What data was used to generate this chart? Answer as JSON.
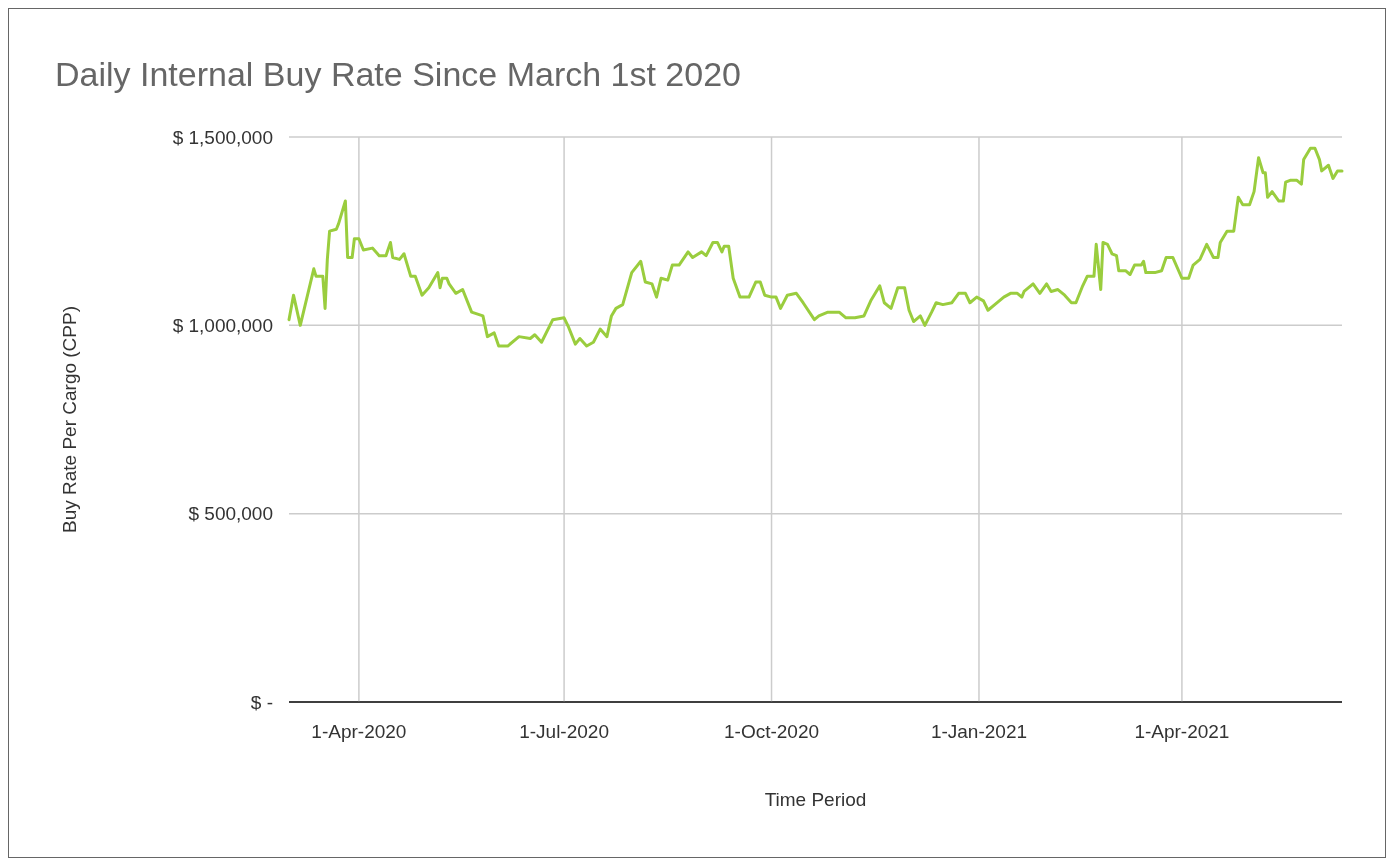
{
  "chart_data": {
    "type": "line",
    "title": "Daily Internal Buy Rate Since March 1st 2020",
    "xlabel": "Time Period",
    "ylabel": "Buy Rate Per Cargo (CPP)",
    "x": [
      "2020-03-01",
      "2020-03-03",
      "2020-03-06",
      "2020-03-09",
      "2020-03-12",
      "2020-03-13",
      "2020-03-16",
      "2020-03-17",
      "2020-03-18",
      "2020-03-19",
      "2020-03-22",
      "2020-03-23",
      "2020-03-26",
      "2020-03-27",
      "2020-03-29",
      "2020-03-30",
      "2020-04-01",
      "2020-04-03",
      "2020-04-07",
      "2020-04-10",
      "2020-04-13",
      "2020-04-15",
      "2020-04-16",
      "2020-04-19",
      "2020-04-21",
      "2020-04-24",
      "2020-04-26",
      "2020-04-29",
      "2020-05-02",
      "2020-05-06",
      "2020-05-07",
      "2020-05-08",
      "2020-05-10",
      "2020-05-11",
      "2020-05-14",
      "2020-05-17",
      "2020-05-21",
      "2020-05-26",
      "2020-05-28",
      "2020-05-31",
      "2020-06-02",
      "2020-06-06",
      "2020-06-11",
      "2020-06-16",
      "2020-06-18",
      "2020-06-21",
      "2020-06-26",
      "2020-07-01",
      "2020-07-03",
      "2020-07-06",
      "2020-07-08",
      "2020-07-11",
      "2020-07-14",
      "2020-07-17",
      "2020-07-20",
      "2020-07-22",
      "2020-07-24",
      "2020-07-27",
      "2020-07-31",
      "2020-08-04",
      "2020-08-06",
      "2020-08-09",
      "2020-08-11",
      "2020-08-13",
      "2020-08-16",
      "2020-08-18",
      "2020-08-21",
      "2020-08-25",
      "2020-08-27",
      "2020-08-31",
      "2020-09-02",
      "2020-09-05",
      "2020-09-07",
      "2020-09-09",
      "2020-09-10",
      "2020-09-12",
      "2020-09-14",
      "2020-09-17",
      "2020-09-21",
      "2020-09-24",
      "2020-09-26",
      "2020-09-28",
      "2020-10-01",
      "2020-10-03",
      "2020-10-05",
      "2020-10-08",
      "2020-10-12",
      "2020-10-15",
      "2020-10-20",
      "2020-10-22",
      "2020-10-26",
      "2020-10-31",
      "2020-11-03",
      "2020-11-07",
      "2020-11-11",
      "2020-11-14",
      "2020-11-18",
      "2020-11-20",
      "2020-11-23",
      "2020-11-26",
      "2020-11-29",
      "2020-12-01",
      "2020-12-03",
      "2020-12-06",
      "2020-12-08",
      "2020-12-11",
      "2020-12-13",
      "2020-12-16",
      "2020-12-20",
      "2020-12-23",
      "2020-12-26",
      "2020-12-28",
      "2020-12-31",
      "2021-01-03",
      "2021-01-05",
      "2021-01-08",
      "2021-01-12",
      "2021-01-15",
      "2021-01-18",
      "2021-01-20",
      "2021-01-21",
      "2021-01-25",
      "2021-01-28",
      "2021-01-31",
      "2021-02-02",
      "2021-02-05",
      "2021-02-08",
      "2021-02-11",
      "2021-02-13",
      "2021-02-16",
      "2021-02-18",
      "2021-02-21",
      "2021-02-22",
      "2021-02-24",
      "2021-02-25",
      "2021-02-27",
      "2021-03-01",
      "2021-03-03",
      "2021-03-04",
      "2021-03-07",
      "2021-03-09",
      "2021-03-11",
      "2021-03-14",
      "2021-03-15",
      "2021-03-16",
      "2021-03-20",
      "2021-03-23",
      "2021-03-25",
      "2021-03-28",
      "2021-04-01",
      "2021-04-04",
      "2021-04-06",
      "2021-04-09",
      "2021-04-12",
      "2021-04-15",
      "2021-04-17",
      "2021-04-18",
      "2021-04-21",
      "2021-04-24",
      "2021-04-26",
      "2021-04-28",
      "2021-05-01",
      "2021-05-03",
      "2021-05-05",
      "2021-05-07",
      "2021-05-08",
      "2021-05-09",
      "2021-05-11",
      "2021-05-14",
      "2021-05-16",
      "2021-05-17",
      "2021-05-19",
      "2021-05-22",
      "2021-05-24",
      "2021-05-25",
      "2021-05-28",
      "2021-05-30",
      "2021-06-01",
      "2021-06-02",
      "2021-06-05",
      "2021-06-07",
      "2021-06-09",
      "2021-06-11"
    ],
    "series": [
      {
        "color": "#9acd3e",
        "values": [
          1015000,
          1080000,
          1000000,
          1075000,
          1150000,
          1130000,
          1130000,
          1045000,
          1175000,
          1250000,
          1255000,
          1270000,
          1330000,
          1180000,
          1180000,
          1230000,
          1230000,
          1200000,
          1205000,
          1185000,
          1185000,
          1220000,
          1180000,
          1175000,
          1190000,
          1130000,
          1130000,
          1080000,
          1100000,
          1140000,
          1100000,
          1125000,
          1125000,
          1110000,
          1085000,
          1095000,
          1035000,
          1025000,
          970000,
          980000,
          945000,
          945000,
          970000,
          965000,
          975000,
          955000,
          1015000,
          1020000,
          995000,
          950000,
          965000,
          945000,
          955000,
          990000,
          970000,
          1025000,
          1045000,
          1055000,
          1140000,
          1170000,
          1115000,
          1110000,
          1075000,
          1125000,
          1120000,
          1160000,
          1160000,
          1195000,
          1180000,
          1195000,
          1185000,
          1220000,
          1220000,
          1195000,
          1210000,
          1210000,
          1125000,
          1075000,
          1075000,
          1115000,
          1115000,
          1080000,
          1075000,
          1075000,
          1045000,
          1080000,
          1085000,
          1060000,
          1015000,
          1025000,
          1035000,
          1035000,
          1020000,
          1020000,
          1025000,
          1065000,
          1105000,
          1060000,
          1045000,
          1100000,
          1100000,
          1040000,
          1010000,
          1025000,
          1000000,
          1035000,
          1060000,
          1055000,
          1060000,
          1085000,
          1085000,
          1060000,
          1075000,
          1065000,
          1040000,
          1055000,
          1075000,
          1085000,
          1085000,
          1075000,
          1090000,
          1110000,
          1085000,
          1110000,
          1090000,
          1095000,
          1080000,
          1060000,
          1060000,
          1105000,
          1130000,
          1130000,
          1215000,
          1095000,
          1220000,
          1215000,
          1190000,
          1185000,
          1145000,
          1145000,
          1135000,
          1160000,
          1160000,
          1170000,
          1140000,
          1140000,
          1145000,
          1180000,
          1180000,
          1125000,
          1125000,
          1160000,
          1175000,
          1215000,
          1180000,
          1180000,
          1220000,
          1250000,
          1250000,
          1340000,
          1320000,
          1320000,
          1355000,
          1445000,
          1405000,
          1405000,
          1340000,
          1355000,
          1330000,
          1330000,
          1380000,
          1385000,
          1385000,
          1375000,
          1440000,
          1470000,
          1470000,
          1440000,
          1410000,
          1425000,
          1390000,
          1410000,
          1410000
        ]
      }
    ],
    "xlim": [
      "2020-03-01",
      "2021-06-11"
    ],
    "xticks": [
      {
        "value": "2020-04-01",
        "label": "1-Apr-2020"
      },
      {
        "value": "2020-07-01",
        "label": "1-Jul-2020"
      },
      {
        "value": "2020-10-01",
        "label": "1-Oct-2020"
      },
      {
        "value": "2021-01-01",
        "label": "1-Jan-2021"
      },
      {
        "value": "2021-04-01",
        "label": "1-Apr-2021"
      }
    ],
    "ylim": [
      0,
      1500000
    ],
    "yticks": [
      {
        "value": 0,
        "label": "$ -"
      },
      {
        "value": 500000,
        "label": "$ 500,000"
      },
      {
        "value": 1000000,
        "label": "$ 1,000,000"
      },
      {
        "value": 1500000,
        "label": "$ 1,500,000"
      }
    ],
    "grid": true,
    "marker": "none",
    "line_style": "solid"
  }
}
